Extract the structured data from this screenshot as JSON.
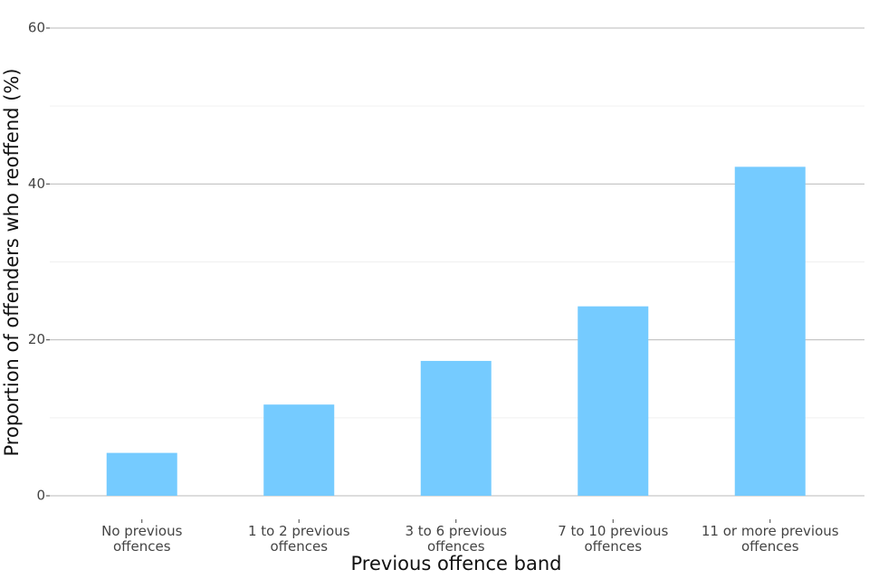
{
  "chart_data": {
    "type": "bar",
    "x_label": "Previous offence band",
    "y_label": "Proportion of offenders who reoffend (%)",
    "categories": [
      "No previous offences",
      "1 to 2 previous offences",
      "3 to 6 previous offences",
      "7 to 10 previous offences",
      "11 or more previous offences"
    ],
    "values": [
      5.5,
      11.7,
      17.3,
      24.3,
      42.2
    ],
    "color": "#75cbff",
    "ylim": [
      0,
      60
    ],
    "yticks": [
      0,
      20,
      40,
      60
    ],
    "minor_yticks": [
      10,
      30,
      50
    ],
    "grid": true
  }
}
